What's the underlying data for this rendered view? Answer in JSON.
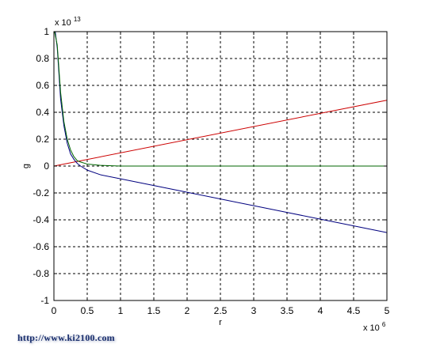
{
  "chart_data": {
    "type": "line",
    "title": "",
    "xlabel": "r",
    "ylabel": "g",
    "x_exponent_label": "x 10",
    "x_exponent_power": "6",
    "y_exponent_label": "x 10",
    "y_exponent_power": "13",
    "xlim": [
      0,
      5
    ],
    "ylim": [
      -1,
      1
    ],
    "xticks": [
      0,
      0.5,
      1,
      1.5,
      2,
      2.5,
      3,
      3.5,
      4,
      4.5,
      5
    ],
    "yticks": [
      -1,
      -0.8,
      -0.6,
      -0.4,
      -0.2,
      0,
      0.2,
      0.4,
      0.6,
      0.8,
      1
    ],
    "xtick_labels": [
      "0",
      "0.5",
      "1",
      "1.5",
      "2",
      "2.5",
      "3",
      "3.5",
      "4",
      "4.5",
      "5"
    ],
    "ytick_labels": [
      "-1",
      "-0.8",
      "-0.6",
      "-0.4",
      "-0.2",
      "0",
      "0.2",
      "0.4",
      "0.6",
      "0.8",
      "1"
    ],
    "grid": true,
    "series": [
      {
        "color": "#cc0000",
        "points": [
          [
            0,
            0
          ],
          [
            5,
            0.49
          ]
        ]
      },
      {
        "color": "#00007f",
        "points": [
          [
            0.02,
            1.0
          ],
          [
            0.05,
            0.88
          ],
          [
            0.1,
            0.5
          ],
          [
            0.15,
            0.3
          ],
          [
            0.2,
            0.17
          ],
          [
            0.25,
            0.09
          ],
          [
            0.3,
            0.05
          ],
          [
            0.35,
            0.02
          ],
          [
            0.4,
            0.0
          ],
          [
            0.5,
            -0.03
          ],
          [
            0.7,
            -0.065
          ],
          [
            1.0,
            -0.095
          ],
          [
            1.5,
            -0.145
          ],
          [
            2.0,
            -0.195
          ],
          [
            2.5,
            -0.245
          ],
          [
            3.0,
            -0.295
          ],
          [
            3.5,
            -0.345
          ],
          [
            4.0,
            -0.395
          ],
          [
            4.5,
            -0.445
          ],
          [
            5.0,
            -0.495
          ]
        ]
      },
      {
        "color": "#006600",
        "points": [
          [
            0.01,
            1.0
          ],
          [
            0.05,
            0.9
          ],
          [
            0.1,
            0.55
          ],
          [
            0.15,
            0.33
          ],
          [
            0.2,
            0.2
          ],
          [
            0.25,
            0.12
          ],
          [
            0.3,
            0.07
          ],
          [
            0.35,
            0.04
          ],
          [
            0.4,
            0.03
          ],
          [
            0.5,
            0.015
          ],
          [
            0.7,
            0.005
          ],
          [
            1.0,
            0.0
          ],
          [
            5.0,
            0.0
          ]
        ]
      }
    ]
  },
  "watermark": "http://www.ki2100.com"
}
